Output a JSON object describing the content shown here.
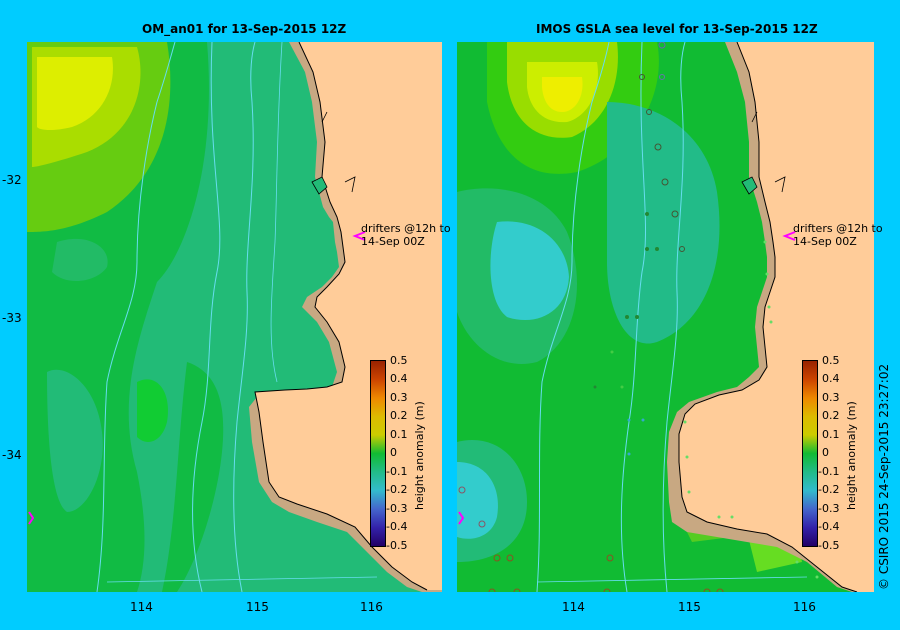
{
  "panels": [
    {
      "title": "OM_an01  for 13-Sep-2015 12Z",
      "drifter_text": [
        "drifters @12h to",
        "14-Sep 00Z"
      ]
    },
    {
      "title": "IMOS GSLA sea level  for 13-Sep-2015 12Z",
      "drifter_text": [
        "drifters @12h to",
        "14-Sep 00Z"
      ]
    }
  ],
  "lat_ticks": [
    "-32",
    "-33",
    "-34"
  ],
  "lon_ticks": [
    "114",
    "115",
    "116"
  ],
  "colorbar": {
    "title": "height anomaly (m)",
    "ticks": [
      "0.5",
      "0.4",
      "0.3",
      "0.2",
      "0.1",
      "0",
      "-0.1",
      "-0.2",
      "-0.3",
      "-0.4",
      "-0.5"
    ]
  },
  "credit": "© CSIRO 2015   24-Sep-2015 23:27:02",
  "colors": {
    "background": "#00ccff",
    "land": "#ffcc99",
    "shelf": "#c8a882",
    "coast": "#000000",
    "bathymetry_contour": "#66ddee",
    "drifter": "#ff00ff"
  }
}
